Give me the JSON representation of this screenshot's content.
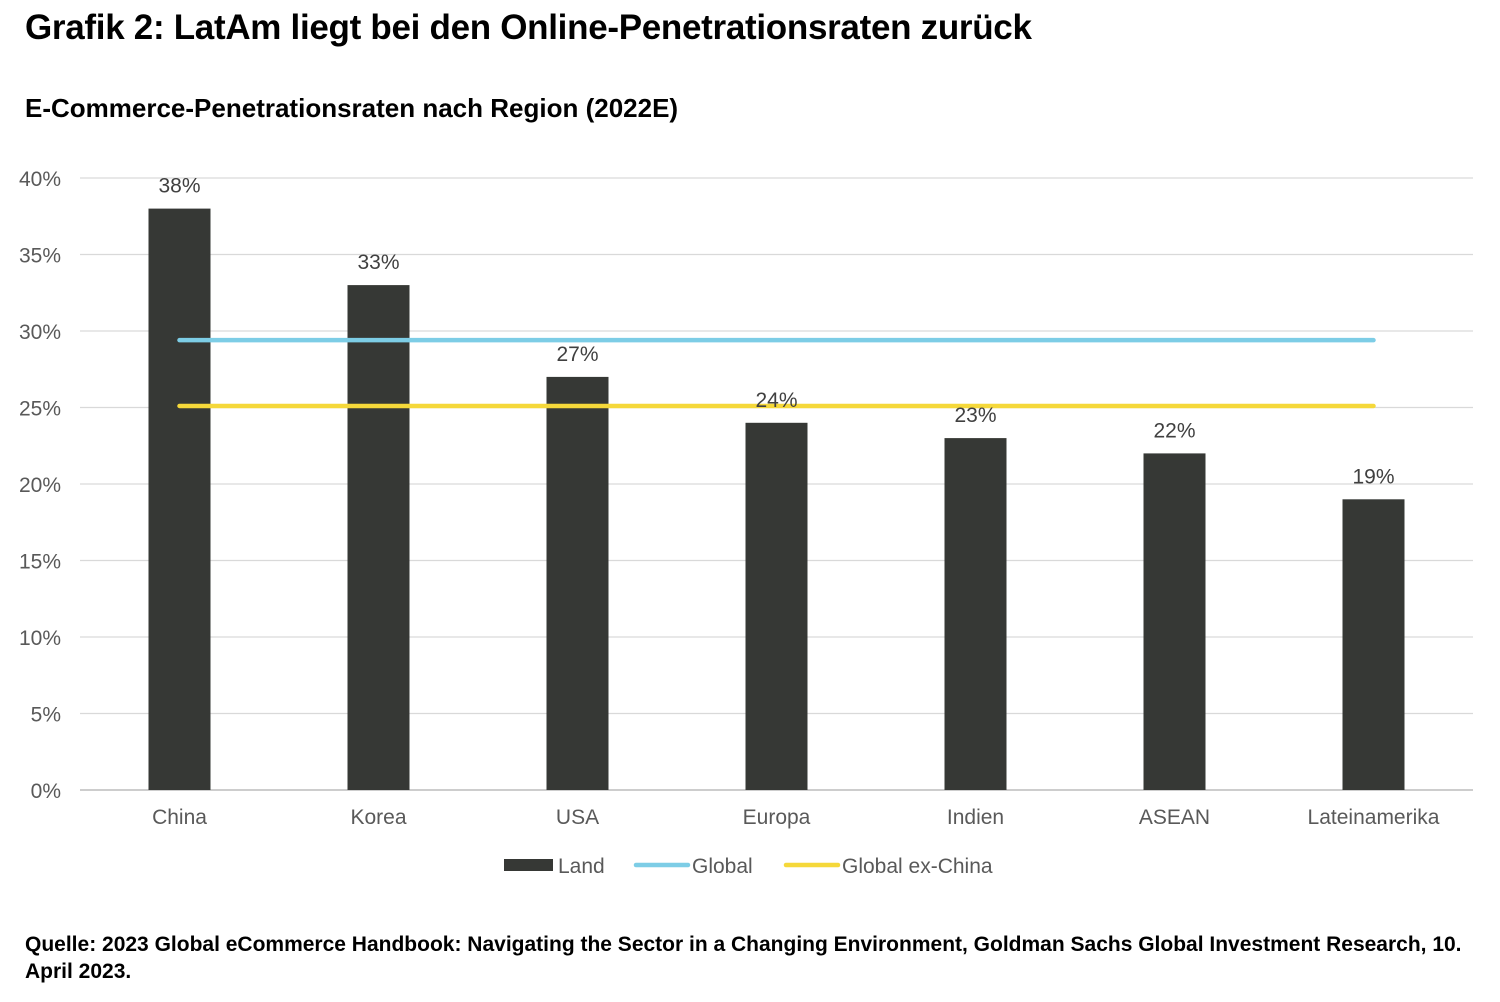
{
  "header": {
    "title": "Grafik 2: LatAm liegt bei den Online-Penetrationsraten zurück",
    "subtitle": "E-Commerce-Penetrationsraten nach Region (2022E)"
  },
  "footer": {
    "source": "Quelle: 2023 Global eCommerce Handbook: Navigating the Sector in a Changing Environment, Goldman Sachs Global Investment Research, 10. April 2023."
  },
  "colors": {
    "bar": "#363835",
    "global": "#7dcde6",
    "global_ex_china": "#f5d83a",
    "grid": "#d9d9d9",
    "axis_text": "#595959",
    "label_text": "#404040"
  },
  "chart_data": {
    "type": "bar",
    "title": "E-Commerce-Penetrationsraten nach Region (2022E)",
    "xlabel": "",
    "ylabel": "",
    "ylim": [
      0,
      40
    ],
    "yticks": [
      0,
      5,
      10,
      15,
      20,
      25,
      30,
      35,
      40
    ],
    "ytick_labels": [
      "0%",
      "5%",
      "10%",
      "15%",
      "20%",
      "25%",
      "30%",
      "35%",
      "40%"
    ],
    "grid": true,
    "legend_position": "bottom",
    "categories": [
      "China",
      "Korea",
      "USA",
      "Europa",
      "Indien",
      "ASEAN",
      "Lateinamerika"
    ],
    "series": [
      {
        "name": "Land",
        "kind": "bar",
        "values": [
          38,
          33,
          27,
          24,
          23,
          22,
          19
        ],
        "data_labels": [
          "38%",
          "33%",
          "27%",
          "24%",
          "23%",
          "22%",
          "19%"
        ]
      },
      {
        "name": "Global",
        "kind": "line",
        "values": [
          29.4,
          29.4,
          29.4,
          29.4,
          29.4,
          29.4,
          29.4
        ]
      },
      {
        "name": "Global ex-China",
        "kind": "line",
        "values": [
          25.1,
          25.1,
          25.1,
          25.1,
          25.1,
          25.1,
          25.1
        ]
      }
    ]
  }
}
